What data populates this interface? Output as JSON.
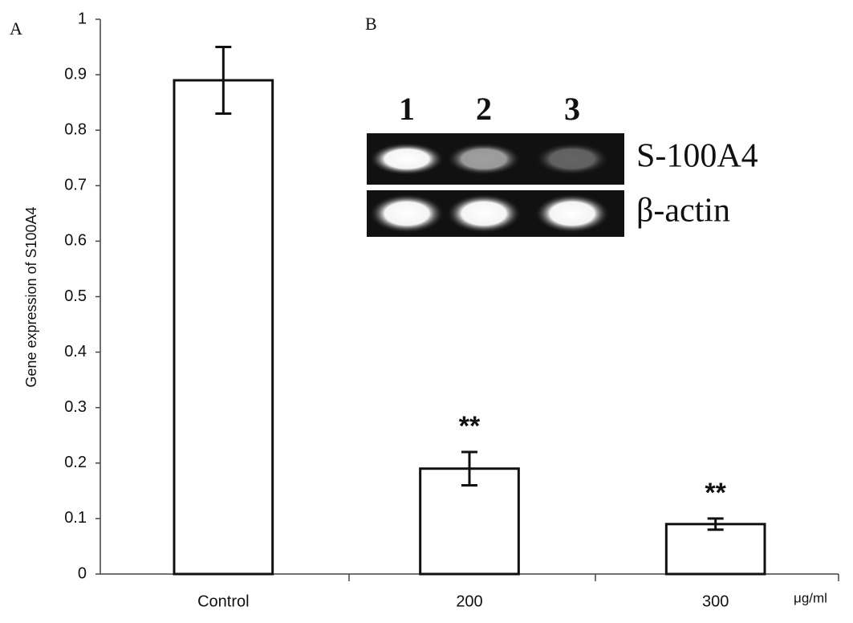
{
  "chart_data": {
    "type": "bar",
    "ylabel": "Gene expression of S100A4",
    "categories": [
      "Control",
      "200",
      "300"
    ],
    "x_unit": "μg/ml",
    "values": [
      0.89,
      0.19,
      0.09
    ],
    "errors": [
      0.06,
      0.03,
      0.01
    ],
    "significance_labels": [
      null,
      "**",
      "**"
    ],
    "color": "#ffffff",
    "ylim": [
      0,
      1
    ],
    "yticks": [
      0,
      0.1,
      0.2,
      0.3,
      0.4,
      0.5,
      0.6,
      0.7,
      0.8,
      0.9,
      1
    ],
    "panel_labels": [
      "A",
      "B"
    ],
    "inset": {
      "lanes": [
        "1",
        "2",
        "3"
      ],
      "rows": [
        "S-100A4",
        "β-actin"
      ]
    }
  }
}
